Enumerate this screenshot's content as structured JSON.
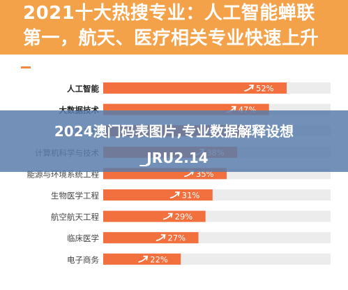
{
  "header": {
    "title_line1": "2021十大热搜专业：人工智能蝉联",
    "title_line2": "第一，航天、医疗相关专业快速上升"
  },
  "overlay": {
    "line1": "2024澳门码表图片,专业数据解释设想",
    "line2": "_JRU2.14"
  },
  "colors": {
    "header_bg": "#f4a24a",
    "bar_fill": "#f26f3e",
    "track": "#ececec",
    "overlay": "#587caa"
  },
  "chart_data": {
    "type": "bar",
    "orientation": "horizontal",
    "title": "2021十大热搜专业：人工智能蝉联第一，航天、医疗相关专业快速上升",
    "categories": [
      "人工智能",
      "大数据技术",
      "物联网工程",
      "计算机科学与技术",
      "能源与环境系统工程",
      "生物医学工程",
      "航空航天工程",
      "临床医学",
      "电子商务"
    ],
    "values": [
      52,
      47,
      41,
      38,
      35,
      31,
      29,
      27,
      22
    ],
    "labels": [
      "52%",
      "47%",
      "41%",
      "38%",
      "35%",
      "31%",
      "29%",
      "27%",
      "22%"
    ],
    "unit": "%",
    "xlim": [
      0,
      100
    ],
    "highlight_top": 2
  }
}
